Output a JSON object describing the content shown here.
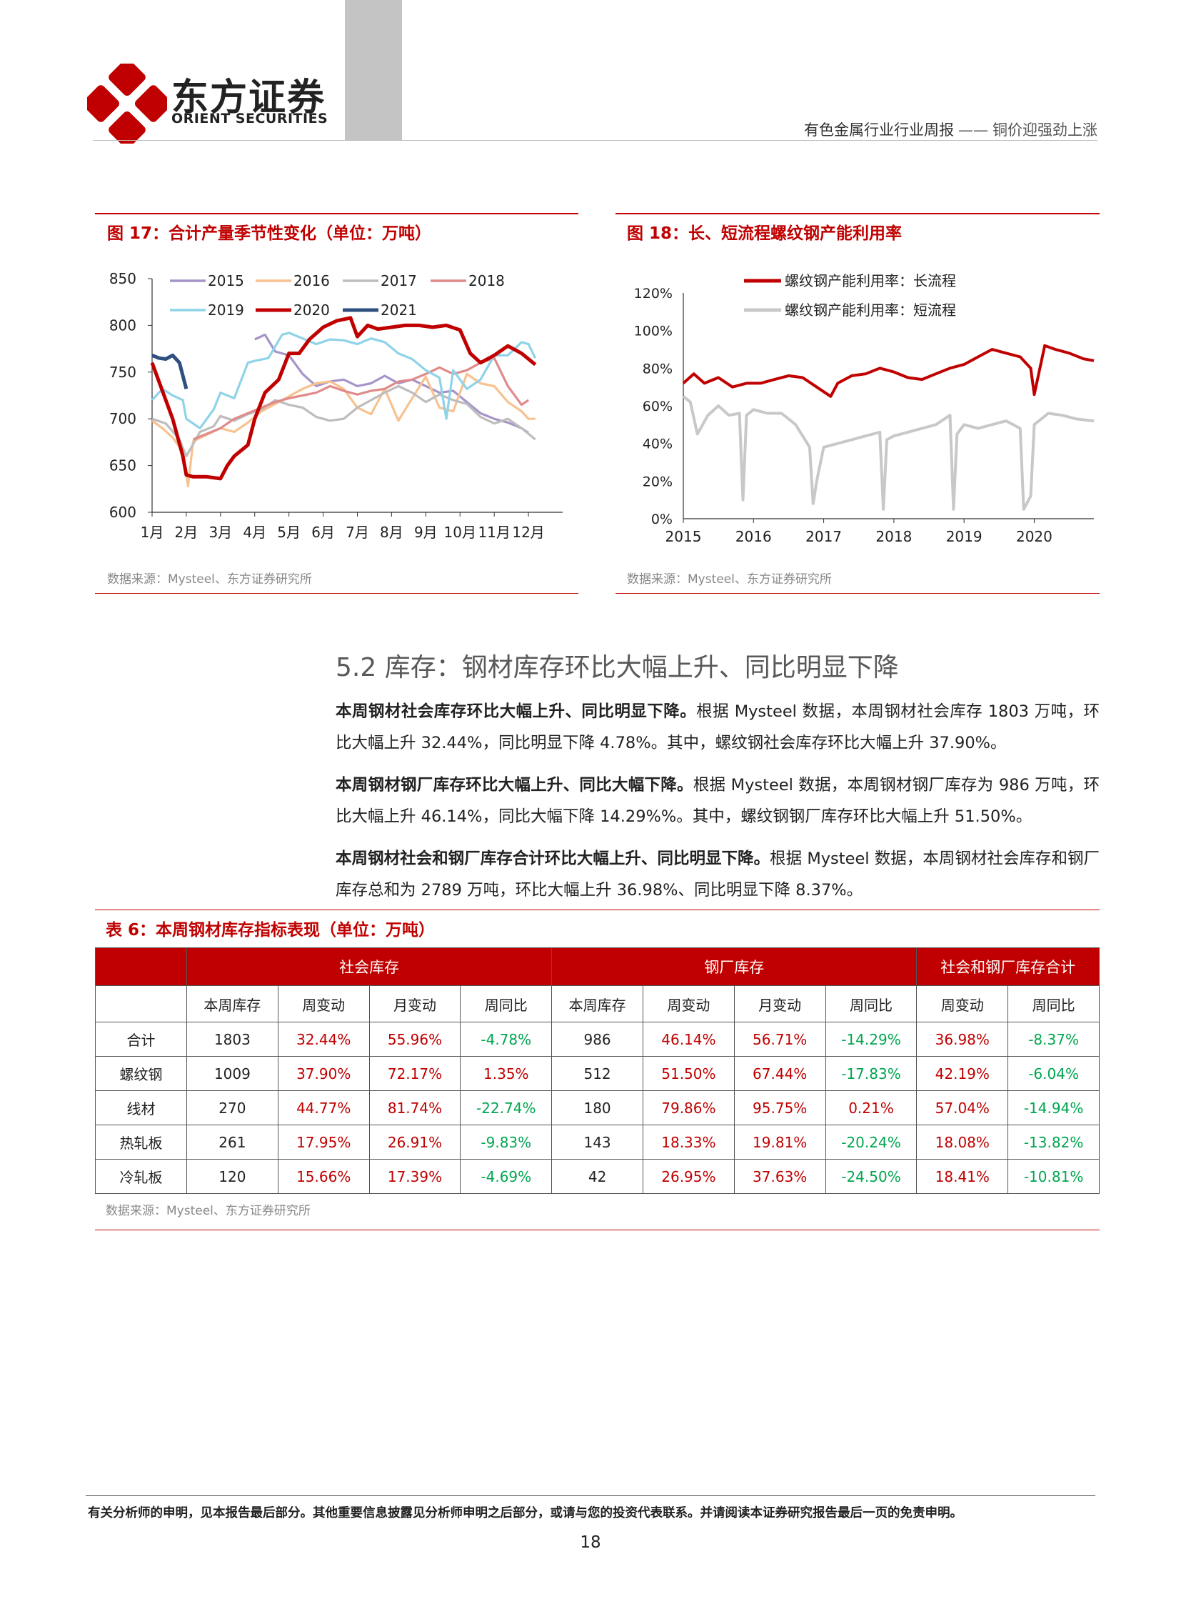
{
  "header": {
    "logo_cn": "东方证券",
    "logo_en": "ORIENT SECURITIES",
    "report_title": "有色金属行业行业周报",
    "separator": "——",
    "report_subtitle": "铜价迎强劲上涨"
  },
  "fig17": {
    "title": "图 17：合计产量季节性变化（单位：万吨）",
    "source": "数据来源：Mysteel、东方证券研究所"
  },
  "fig18": {
    "title": "图 18：长、短流程螺纹钢产能利用率",
    "source": "数据来源：Mysteel、东方证券研究所"
  },
  "chart_data": [
    {
      "type": "line",
      "id": "fig17",
      "title": "",
      "xlabel": "",
      "ylabel": "",
      "categories": [
        "1月",
        "2月",
        "3月",
        "4月",
        "5月",
        "6月",
        "7月",
        "8月",
        "9月",
        "10月",
        "11月",
        "12月"
      ],
      "ylim": [
        600,
        850
      ],
      "yticks": [
        "850",
        "800",
        "750",
        "700",
        "650",
        "600"
      ],
      "legend_position": "top",
      "series": [
        {
          "name": "2015",
          "color": "#a694c9",
          "x": [
            4.0,
            4.3,
            4.6,
            5.0,
            5.4,
            5.8,
            6.2,
            6.6,
            7.0,
            7.4,
            7.8,
            8.2,
            8.6,
            9.0,
            9.4,
            9.8,
            10.2,
            10.6,
            11.0,
            11.4,
            11.8,
            12.0
          ],
          "values": [
            785,
            790,
            772,
            768,
            748,
            735,
            740,
            742,
            735,
            738,
            746,
            738,
            742,
            735,
            728,
            730,
            718,
            706,
            700,
            696,
            690,
            685
          ]
        },
        {
          "name": "2016",
          "color": "#f7c28f",
          "x": [
            1.0,
            1.3,
            1.6,
            1.9,
            2.05,
            2.2,
            2.6,
            3.0,
            3.4,
            3.8,
            4.2,
            4.6,
            5.0,
            5.4,
            5.8,
            6.2,
            6.6,
            7.0,
            7.4,
            7.8,
            8.2,
            8.6,
            9.0,
            9.4,
            9.8,
            10.2,
            10.6,
            11.0,
            11.4,
            11.8,
            12.0,
            12.2
          ],
          "values": [
            698,
            690,
            680,
            665,
            628,
            676,
            683,
            690,
            686,
            696,
            708,
            716,
            724,
            732,
            738,
            740,
            732,
            712,
            705,
            732,
            698,
            722,
            745,
            712,
            708,
            748,
            738,
            735,
            718,
            708,
            700,
            700
          ]
        },
        {
          "name": "2017",
          "color": "#bdbdbd",
          "x": [
            1.0,
            1.4,
            1.8,
            2.0,
            2.4,
            2.8,
            3.0,
            3.4,
            3.8,
            4.2,
            4.6,
            5.0,
            5.4,
            5.8,
            6.2,
            6.6,
            7.0,
            7.4,
            7.8,
            8.2,
            8.6,
            9.0,
            9.4,
            9.8,
            10.2,
            10.6,
            11.0,
            11.4,
            11.8,
            12.2
          ],
          "values": [
            700,
            695,
            678,
            660,
            686,
            692,
            703,
            698,
            705,
            710,
            720,
            715,
            712,
            702,
            698,
            700,
            712,
            720,
            728,
            735,
            728,
            718,
            726,
            720,
            716,
            702,
            695,
            700,
            690,
            678
          ]
        },
        {
          "name": "2018",
          "color": "#e08a8a",
          "x": [
            2.2,
            2.6,
            3.0,
            3.4,
            3.8,
            4.2,
            4.6,
            5.0,
            5.4,
            5.8,
            6.2,
            6.6,
            7.0,
            7.4,
            7.8,
            8.2,
            8.6,
            9.0,
            9.4,
            9.8,
            10.2,
            10.6,
            11.0,
            11.4,
            11.8,
            12.0
          ],
          "values": [
            678,
            684,
            690,
            700,
            706,
            712,
            718,
            722,
            725,
            728,
            735,
            730,
            726,
            730,
            732,
            740,
            742,
            748,
            755,
            748,
            752,
            760,
            765,
            735,
            715,
            720
          ]
        },
        {
          "name": "2019",
          "color": "#8fd3e8",
          "x": [
            1.0,
            1.3,
            1.6,
            1.9,
            2.0,
            2.4,
            2.8,
            3.0,
            3.4,
            3.8,
            4.0,
            4.4,
            4.8,
            5.0,
            5.4,
            5.8,
            6.2,
            6.6,
            7.0,
            7.4,
            7.8,
            8.2,
            8.6,
            9.0,
            9.4,
            9.6,
            9.8,
            10.2,
            10.6,
            11.0,
            11.4,
            11.8,
            12.0,
            12.2
          ],
          "values": [
            720,
            732,
            725,
            720,
            700,
            690,
            710,
            728,
            722,
            760,
            762,
            765,
            790,
            792,
            786,
            780,
            785,
            784,
            780,
            786,
            782,
            770,
            764,
            752,
            744,
            700,
            752,
            732,
            742,
            768,
            768,
            782,
            780,
            765
          ]
        },
        {
          "name": "2020",
          "color": "#c00000",
          "x": [
            1.0,
            1.3,
            1.6,
            1.9,
            2.0,
            2.2,
            2.6,
            3.0,
            3.2,
            3.4,
            3.8,
            4.0,
            4.3,
            4.7,
            5.0,
            5.3,
            5.6,
            6.0,
            6.4,
            6.8,
            7.0,
            7.3,
            7.6,
            8.0,
            8.4,
            8.8,
            9.2,
            9.6,
            10.0,
            10.3,
            10.6,
            11.0,
            11.4,
            11.8,
            12.2
          ],
          "values": [
            760,
            730,
            700,
            660,
            640,
            638,
            638,
            636,
            650,
            660,
            672,
            700,
            728,
            742,
            770,
            770,
            785,
            798,
            805,
            808,
            788,
            800,
            796,
            798,
            800,
            800,
            798,
            800,
            795,
            770,
            760,
            768,
            778,
            770,
            758
          ]
        },
        {
          "name": "2021",
          "color": "#2e4f7f",
          "x": [
            1.0,
            1.2,
            1.4,
            1.6,
            1.8,
            2.0
          ],
          "values": [
            768,
            765,
            764,
            768,
            760,
            732
          ]
        }
      ]
    },
    {
      "type": "line",
      "id": "fig18",
      "title": "",
      "xlabel": "",
      "ylabel": "",
      "categories": [
        "2015",
        "2016",
        "2017",
        "2018",
        "2019",
        "2020"
      ],
      "ylim": [
        0,
        120
      ],
      "yticks": [
        "120%",
        "100%",
        "80%",
        "60%",
        "40%",
        "20%",
        "0%"
      ],
      "legend_position": "top",
      "series": [
        {
          "name": "螺纹钢产能利用率：长流程",
          "color": "#c00000",
          "x": [
            2015.0,
            2015.15,
            2015.3,
            2015.5,
            2015.7,
            2015.9,
            2016.1,
            2016.3,
            2016.5,
            2016.7,
            2016.9,
            2017.1,
            2017.2,
            2017.4,
            2017.6,
            2017.8,
            2018.0,
            2018.2,
            2018.4,
            2018.6,
            2018.8,
            2019.0,
            2019.2,
            2019.4,
            2019.6,
            2019.8,
            2019.95,
            2020.0,
            2020.15,
            2020.3,
            2020.5,
            2020.7,
            2020.85
          ],
          "values": [
            72,
            77,
            72,
            75,
            70,
            72,
            72,
            74,
            76,
            75,
            70,
            65,
            72,
            76,
            77,
            80,
            78,
            75,
            74,
            77,
            80,
            82,
            86,
            90,
            88,
            86,
            80,
            66,
            92,
            90,
            88,
            85,
            84
          ]
        },
        {
          "name": "螺纹钢产能利用率：短流程",
          "color": "#c8c8c8",
          "x": [
            2015.0,
            2015.1,
            2015.2,
            2015.35,
            2015.5,
            2015.65,
            2015.8,
            2015.85,
            2015.9,
            2016.0,
            2016.2,
            2016.4,
            2016.6,
            2016.8,
            2016.85,
            2016.9,
            2017.0,
            2017.2,
            2017.4,
            2017.6,
            2017.8,
            2017.85,
            2017.9,
            2018.0,
            2018.2,
            2018.4,
            2018.6,
            2018.8,
            2018.85,
            2018.9,
            2019.0,
            2019.2,
            2019.4,
            2019.6,
            2019.8,
            2019.85,
            2019.95,
            2020.0,
            2020.2,
            2020.4,
            2020.6,
            2020.85
          ],
          "values": [
            65,
            62,
            45,
            55,
            60,
            55,
            56,
            10,
            55,
            58,
            56,
            56,
            50,
            38,
            8,
            20,
            38,
            40,
            42,
            44,
            46,
            5,
            42,
            44,
            46,
            48,
            50,
            55,
            5,
            45,
            50,
            48,
            50,
            52,
            48,
            5,
            12,
            50,
            56,
            55,
            53,
            52
          ]
        }
      ]
    }
  ],
  "section": {
    "heading": "5.2 库存：钢材库存环比大幅上升、同比明显下降",
    "paragraphs": [
      {
        "lead": "本周钢材社会库存环比大幅上升、同比明显下降。",
        "body": "根据 Mysteel 数据，本周钢材社会库存 1803 万吨，环比大幅上升 32.44%，同比明显下降 4.78%。其中，螺纹钢社会库存环比大幅上升 37.90%。"
      },
      {
        "lead": "本周钢材钢厂库存环比大幅上升、同比大幅下降。",
        "body": "根据 Mysteel 数据，本周钢材钢厂库存为 986 万吨，环比大幅上升 46.14%，同比大幅下降 14.29%%。其中，螺纹钢钢厂库存环比大幅上升 51.50%。"
      },
      {
        "lead": "本周钢材社会和钢厂库存合计环比大幅上升、同比明显下降。",
        "body": "根据 Mysteel 数据，本周钢材社会库存和钢厂库存总和为 2789 万吨，环比大幅上升 36.98%、同比明显下降 8.37%。"
      }
    ]
  },
  "table6": {
    "title": "表 6：本周钢材库存指标表现（单位：万吨）",
    "groups": [
      "社会库存",
      "钢厂库存",
      "社会和钢厂库存合计"
    ],
    "subheaders": [
      "本周库存",
      "周变动",
      "月变动",
      "周同比",
      "本周库存",
      "周变动",
      "月变动",
      "周同比",
      "周变动",
      "周同比"
    ],
    "rows": [
      {
        "name": "合计",
        "cells": [
          "1803",
          "32.44%",
          "55.96%",
          "-4.78%",
          "986",
          "46.14%",
          "56.71%",
          "-14.29%",
          "36.98%",
          "-8.37%"
        ]
      },
      {
        "name": "螺纹钢",
        "cells": [
          "1009",
          "37.90%",
          "72.17%",
          "1.35%",
          "512",
          "51.50%",
          "67.44%",
          "-17.83%",
          "42.19%",
          "-6.04%"
        ]
      },
      {
        "name": "线材",
        "cells": [
          "270",
          "44.77%",
          "81.74%",
          "-22.74%",
          "180",
          "79.86%",
          "95.75%",
          "0.21%",
          "57.04%",
          "-14.94%"
        ]
      },
      {
        "name": "热轧板",
        "cells": [
          "261",
          "17.95%",
          "26.91%",
          "-9.83%",
          "143",
          "18.33%",
          "19.81%",
          "-20.24%",
          "18.08%",
          "-13.82%"
        ]
      },
      {
        "name": "冷轧板",
        "cells": [
          "120",
          "15.66%",
          "17.39%",
          "-4.69%",
          "42",
          "26.95%",
          "37.63%",
          "-24.50%",
          "18.41%",
          "-10.81%"
        ]
      }
    ],
    "cell_colors": [
      "neutral",
      "red",
      "red",
      "green",
      "neutral",
      "red",
      "red",
      "green",
      "red",
      "green"
    ],
    "row_overrides": {
      "螺纹钢": {
        "3": "red"
      },
      "线材": {
        "7": "red"
      }
    },
    "source": "数据来源：Mysteel、东方证券研究所"
  },
  "footer": {
    "disclaimer": "有关分析师的申明，见本报告最后部分。其他重要信息披露见分析师申明之后部分，或请与您的投资代表联系。并请阅读本证券研究报告最后一页的免责申明。",
    "page_number": "18"
  },
  "colors": {
    "brand_red": "#c00000",
    "positive": "#c00000",
    "negative": "#00a650"
  }
}
